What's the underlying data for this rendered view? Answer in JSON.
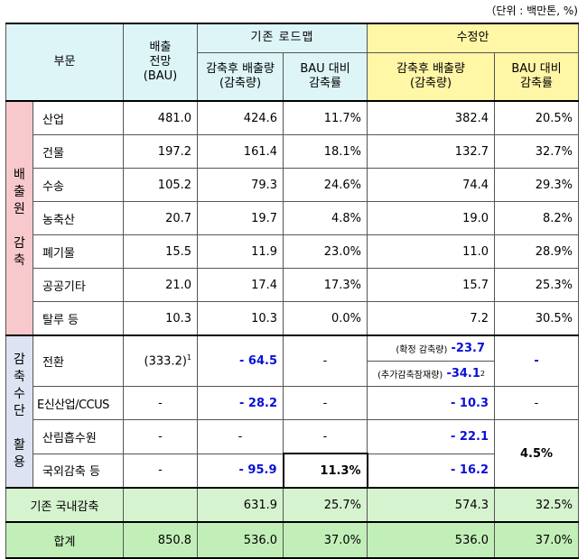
{
  "unit_note": "（단위 : 백만톤, %)",
  "header": {
    "sector": "부문",
    "bau": "배출\n전망\n(BAU)",
    "existing": "기존 로드맵",
    "revised": "수정안",
    "after_emission": "감축후 배출량\n(감축량)",
    "bau_ratio": "BAU 대비\n감축률",
    "after_emission_rev": "감축후 배출량\n(감축량)",
    "bau_ratio_rev": "BAU 대비\n감축률"
  },
  "group1_label": "배\n출\n원\n\n감\n축",
  "group2_label": "감\n축\n수\n단\n\n활\n용",
  "source_rows": [
    {
      "name": "산업",
      "bau": "481.0",
      "ex_emission": "424.6",
      "ex_rate": "11.7%",
      "rev_emission": "382.4",
      "rev_rate": "20.5%"
    },
    {
      "name": "건물",
      "bau": "197.2",
      "ex_emission": "161.4",
      "ex_rate": "18.1%",
      "rev_emission": "132.7",
      "rev_rate": "32.7%"
    },
    {
      "name": "수송",
      "bau": "105.2",
      "ex_emission": "79.3",
      "ex_rate": "24.6%",
      "rev_emission": "74.4",
      "rev_rate": "29.3%"
    },
    {
      "name": "농축산",
      "bau": "20.7",
      "ex_emission": "19.7",
      "ex_rate": "4.8%",
      "rev_emission": "19.0",
      "rev_rate": "8.2%"
    },
    {
      "name": "폐기물",
      "bau": "15.5",
      "ex_emission": "11.9",
      "ex_rate": "23.0%",
      "rev_emission": "11.0",
      "rev_rate": "28.9%"
    },
    {
      "name": "공공기타",
      "bau": "21.0",
      "ex_emission": "17.4",
      "ex_rate": "17.3%",
      "rev_emission": "15.7",
      "rev_rate": "25.3%"
    },
    {
      "name": "탈루 등",
      "bau": "10.3",
      "ex_emission": "10.3",
      "ex_rate": "0.0%",
      "rev_emission": "7.2",
      "rev_rate": "30.5%"
    }
  ],
  "means": {
    "conversion": {
      "name": "전환",
      "bau": "(333.2)",
      "bau_sup": "1",
      "ex_emission": "- 64.5",
      "ex_rate": "-",
      "rev_confirmed_label": "(확정 감축량)",
      "rev_confirmed_value": "-23.7",
      "rev_extra_label": "(추가감축잠재량)",
      "rev_extra_value": "-34.1",
      "rev_extra_sup": "2",
      "rev_rate": "-"
    },
    "ccus": {
      "name": "E신산업/CCUS",
      "bau": "-",
      "ex_emission": "- 28.2",
      "ex_rate": "-",
      "rev_emission": "- 10.3",
      "rev_rate": "-"
    },
    "forest": {
      "name": "산림흡수원",
      "bau": "-",
      "ex_emission": "-",
      "ex_rate": "-",
      "rev_emission": "- 22.1"
    },
    "overseas": {
      "name": "국외감축 등",
      "bau": "-",
      "ex_emission": "- 95.9",
      "ex_rate": "11.3%",
      "rev_emission": "- 16.2"
    },
    "merged_rate": "4.5%"
  },
  "domestic": {
    "name": "기존 국내감축",
    "bau": "",
    "ex_emission": "631.9",
    "ex_rate": "25.7%",
    "rev_emission": "574.3",
    "rev_rate": "32.5%"
  },
  "total": {
    "name": "합계",
    "bau": "850.8",
    "ex_emission": "536.0",
    "ex_rate": "37.0%",
    "rev_emission": "536.0",
    "rev_rate": "37.0%"
  }
}
